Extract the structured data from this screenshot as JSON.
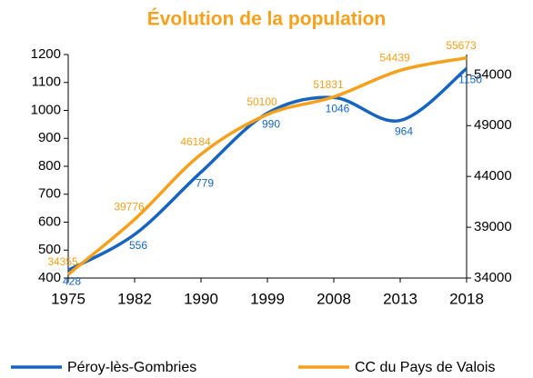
{
  "chart_data": {
    "type": "line",
    "title": "Évolution de la population",
    "categories": [
      "1975",
      "1982",
      "1990",
      "1999",
      "2008",
      "2013",
      "2018"
    ],
    "series": [
      {
        "name": "Péroy-lès-Gombries",
        "color": "#1565c0",
        "values": [
          428,
          556,
          779,
          990,
          1046,
          964,
          1150
        ]
      },
      {
        "name": "CC du Pays de Valois",
        "color": "#f7a01c",
        "axis": "y2",
        "values": [
          34355,
          39776,
          46184,
          50100,
          51831,
          54439,
          55673
        ]
      }
    ],
    "ylim": [
      400,
      1200
    ],
    "yticks": [
      400,
      500,
      600,
      700,
      800,
      900,
      1000,
      1100,
      1200
    ],
    "y2lim": [
      34000,
      56000
    ],
    "y2ticks": [
      34000,
      39000,
      44000,
      49000,
      54000
    ],
    "grid": false,
    "legend": "bottom"
  }
}
